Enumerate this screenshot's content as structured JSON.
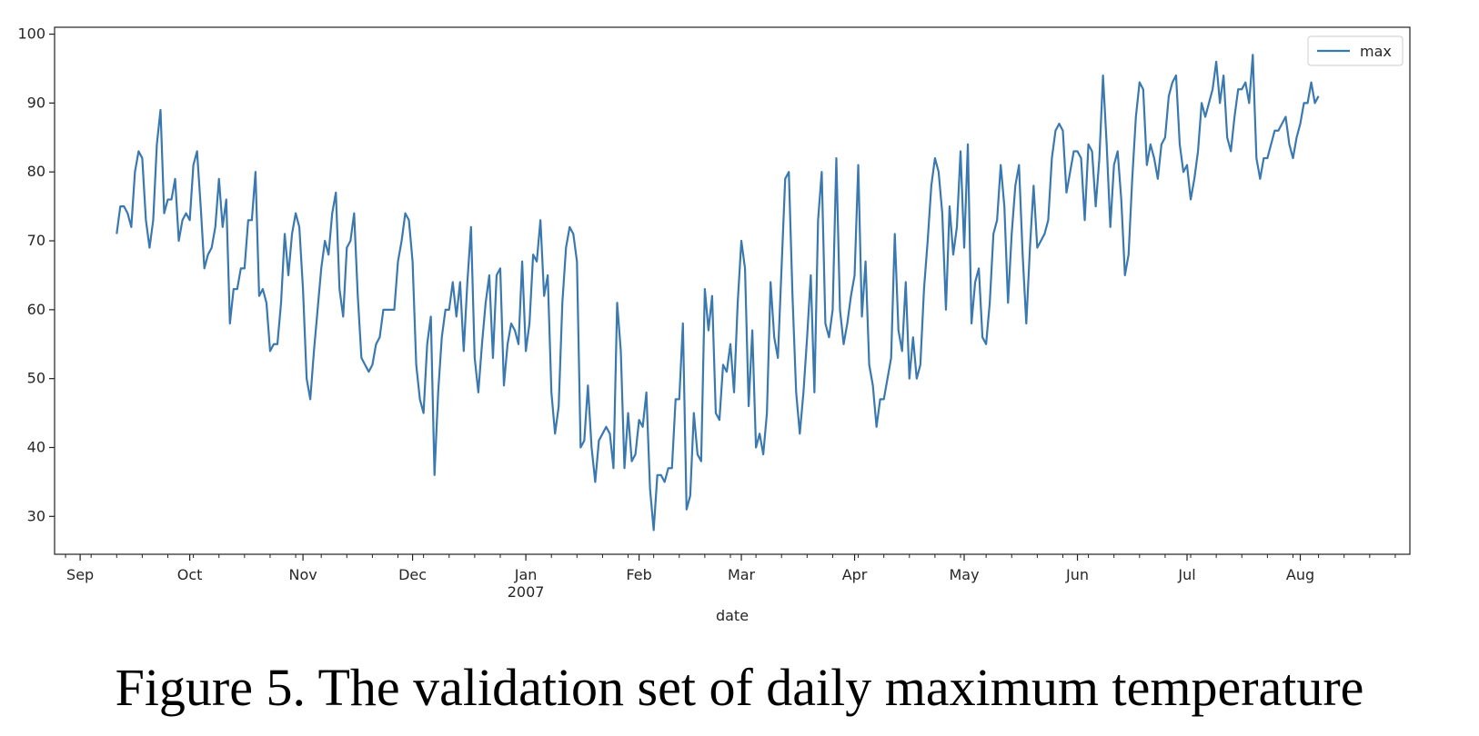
{
  "caption": "Figure 5. The validation set of daily maximum temperature",
  "chart_data": {
    "type": "line",
    "x_start": "2006-09-11",
    "x_end": "2007-08-06",
    "x_frequency": "daily",
    "xlabel": "date",
    "ylabel": "",
    "ylim": [
      24.5,
      101
    ],
    "xlim": [
      "2006-08-25",
      "2007-08-31"
    ],
    "grid": false,
    "legend": {
      "position": "top-right",
      "entries": [
        "max"
      ]
    },
    "y_ticks": [
      30,
      40,
      50,
      60,
      70,
      80,
      90,
      100
    ],
    "x_ticks": [
      {
        "date": "2006-09-01",
        "label": "Sep",
        "sublabel": ""
      },
      {
        "date": "2006-10-01",
        "label": "Oct",
        "sublabel": ""
      },
      {
        "date": "2006-11-01",
        "label": "Nov",
        "sublabel": ""
      },
      {
        "date": "2006-12-01",
        "label": "Dec",
        "sublabel": ""
      },
      {
        "date": "2007-01-01",
        "label": "Jan",
        "sublabel": "2007"
      },
      {
        "date": "2007-02-01",
        "label": "Feb",
        "sublabel": ""
      },
      {
        "date": "2007-03-01",
        "label": "Mar",
        "sublabel": ""
      },
      {
        "date": "2007-04-01",
        "label": "Apr",
        "sublabel": ""
      },
      {
        "date": "2007-05-01",
        "label": "May",
        "sublabel": ""
      },
      {
        "date": "2007-06-01",
        "label": "Jun",
        "sublabel": ""
      },
      {
        "date": "2007-07-01",
        "label": "Jul",
        "sublabel": ""
      },
      {
        "date": "2007-08-01",
        "label": "Aug",
        "sublabel": ""
      }
    ],
    "series": [
      {
        "name": "max",
        "color": "#3a78b0",
        "values": [
          71,
          75,
          75,
          74,
          72,
          80,
          83,
          82,
          73,
          69,
          73,
          84,
          89,
          74,
          76,
          76,
          79,
          70,
          73,
          74,
          73,
          81,
          83,
          75,
          66,
          68,
          69,
          72,
          79,
          72,
          76,
          58,
          63,
          63,
          66,
          66,
          73,
          73,
          80,
          62,
          63,
          61,
          54,
          55,
          55,
          61,
          71,
          65,
          71,
          74,
          72,
          63,
          50,
          47,
          54,
          60,
          66,
          70,
          68,
          74,
          77,
          63,
          59,
          69,
          70,
          74,
          62,
          53,
          52,
          51,
          52,
          55,
          56,
          60,
          60,
          60,
          60,
          67,
          70,
          74,
          73,
          67,
          52,
          47,
          45,
          55,
          59,
          36,
          48,
          56,
          60,
          60,
          64,
          59,
          64,
          54,
          64,
          72,
          53,
          48,
          55,
          61,
          65,
          53,
          65,
          66,
          49,
          55,
          58,
          57,
          55,
          67,
          54,
          58,
          68,
          67,
          73,
          62,
          65,
          48,
          42,
          46,
          61,
          69,
          72,
          71,
          67,
          40,
          41,
          49,
          40,
          35,
          41,
          42,
          43,
          42,
          37,
          61,
          54,
          37,
          45,
          38,
          39,
          44,
          43,
          48,
          34,
          28,
          36,
          36,
          35,
          37,
          37,
          47,
          47,
          58,
          31,
          33,
          45,
          39,
          38,
          63,
          57,
          62,
          45,
          44,
          52,
          51,
          55,
          48,
          61,
          70,
          66,
          46,
          57,
          40,
          42,
          39,
          45,
          64,
          56,
          53,
          66,
          79,
          80,
          62,
          48,
          42,
          48,
          56,
          65,
          48,
          73,
          80,
          58,
          56,
          60,
          82,
          60,
          55,
          58,
          62,
          65,
          81,
          59,
          67,
          52,
          49,
          43,
          47,
          47,
          50,
          53,
          71,
          57,
          54,
          64,
          50,
          56,
          50,
          52,
          63,
          70,
          78,
          82,
          80,
          74,
          60,
          75,
          68,
          72,
          83,
          69,
          84,
          58,
          64,
          66,
          56,
          55,
          61,
          71,
          73,
          81,
          75,
          61,
          71,
          78,
          81,
          68,
          58,
          69,
          78,
          69,
          70,
          71,
          73,
          82,
          86,
          87,
          86,
          77,
          80,
          83,
          83,
          82,
          73,
          84,
          83,
          75,
          82,
          94,
          84,
          72,
          81,
          83,
          76,
          65,
          68,
          79,
          88,
          93,
          92,
          81,
          84,
          82,
          79,
          84,
          85,
          91,
          93,
          94,
          84,
          80,
          81,
          76,
          79,
          83,
          90,
          88,
          90,
          92,
          96,
          90,
          94,
          85,
          83,
          88,
          92,
          92,
          93,
          90,
          97,
          82,
          79,
          82,
          82,
          84,
          86,
          86,
          87,
          88,
          84,
          82,
          85,
          87,
          90,
          90,
          93,
          90,
          91
        ]
      }
    ]
  }
}
